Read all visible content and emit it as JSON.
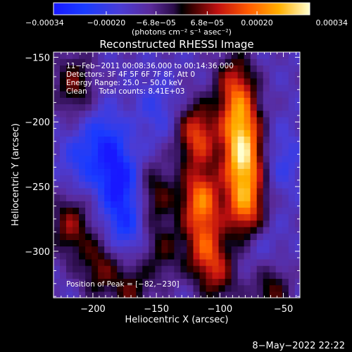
{
  "chart_data": {
    "type": "heatmap",
    "title": "Reconstructed RHESSI Image",
    "xlabel": "Heliocentric X (arcsec)",
    "ylabel": "Heliocentric Y (arcsec)",
    "xlim": [
      -231,
      -37
    ],
    "ylim": [
      -336,
      -146
    ],
    "x_ticks": [
      -200,
      -150,
      -100,
      -50
    ],
    "x_tick_labels": [
      "−200",
      "−150",
      "−100",
      "−50"
    ],
    "y_ticks": [
      -150,
      -200,
      -250,
      -300
    ],
    "y_tick_labels": [
      "−150",
      "−200",
      "−250",
      "−300"
    ],
    "colorbar": {
      "range": [
        -0.00034,
        0.00034
      ],
      "ticks": [
        -0.00034,
        -0.0002,
        -6.8e-05,
        6.8e-05,
        0.0002,
        0.00034
      ],
      "tick_labels": [
        "−0.00034",
        "−0.00020",
        "−6.8e−05",
        "6.8e−05",
        "0.00020",
        "0.00034"
      ],
      "unit_label": "(photons cm⁻² s⁻¹ asec⁻²)"
    },
    "info_lines": [
      "11−Feb−2011 00:08:36.000 to 00:14:36.000",
      "Detectors: 3F 4F 5F 6F 7F 8F, Att 0",
      "Energy Range: 25.0 − 50.0 keV",
      "Clean     Total counts: 8.41E+03"
    ],
    "peak_text": "Position of Peak = [−82,−230]",
    "peak": [
      -82,
      -230
    ],
    "sources": [
      {
        "x": -82,
        "y": -230,
        "amp": 0.00034
      },
      {
        "x": -80,
        "y": -265,
        "amp": 0.0003
      },
      {
        "x": -84,
        "y": -200,
        "amp": 0.00028
      },
      {
        "x": -118,
        "y": -210,
        "amp": 0.00026
      },
      {
        "x": -115,
        "y": -260,
        "amp": 0.0003
      },
      {
        "x": -112,
        "y": -298,
        "amp": 0.00022
      },
      {
        "x": -88,
        "y": -170,
        "amp": 0.0002
      },
      {
        "x": -215,
        "y": -170,
        "amp": 0.00016
      },
      {
        "x": -218,
        "y": -280,
        "amp": 0.00018
      },
      {
        "x": -195,
        "y": -312,
        "amp": 0.00016
      },
      {
        "x": -150,
        "y": -255,
        "amp": 0.00014
      },
      {
        "x": -145,
        "y": -300,
        "amp": 0.00012
      },
      {
        "x": -170,
        "y": -330,
        "amp": 0.00014
      },
      {
        "x": -100,
        "y": -320,
        "amp": 0.00014
      },
      {
        "x": -60,
        "y": -330,
        "amp": 0.00016
      },
      {
        "x": -190,
        "y": -215,
        "amp": -0.00014
      },
      {
        "x": -180,
        "y": -245,
        "amp": -0.0002
      },
      {
        "x": -175,
        "y": -280,
        "amp": -0.00014
      },
      {
        "x": -210,
        "y": -230,
        "amp": -0.0001
      },
      {
        "x": -150,
        "y": -190,
        "amp": -8e-05
      },
      {
        "x": -50,
        "y": -230,
        "amp": -8e-05
      },
      {
        "x": -65,
        "y": -300,
        "amp": -6e-05
      }
    ]
  },
  "footer": {
    "timestamp": "8−May−2022 22:22"
  }
}
